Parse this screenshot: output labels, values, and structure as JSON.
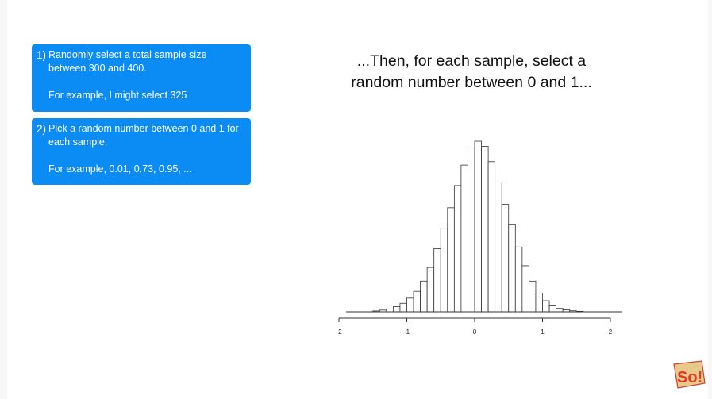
{
  "step1": {
    "number": "1)",
    "text": "Randomly select a total sample size between 300 and 400.",
    "example": "For example, I might select 325"
  },
  "step2": {
    "number": "2)",
    "text": "Pick a random number between 0 and 1 for each sample.",
    "example": "For example, 0.01, 0.73, 0.95, ..."
  },
  "headline": {
    "line1": "...Then, for each sample, select a",
    "line2": "random number between 0 and 1..."
  },
  "logo_text": "So!",
  "colors": {
    "accent": "#0a8cf4",
    "bar_fill": "#ffffff",
    "bar_stroke": "#333333"
  },
  "chart_data": {
    "type": "bar",
    "description_kind": "histogram",
    "bin_width": 0.1,
    "xlim": [
      -2,
      2
    ],
    "ylim": [
      0,
      1
    ],
    "x_ticks": [
      -2,
      -1,
      0,
      1,
      2
    ],
    "x_tick_labels": [
      "-2",
      "-1",
      "0",
      "1",
      "2"
    ],
    "bin_starts": [
      -1.5,
      -1.4,
      -1.3,
      -1.2,
      -1.1,
      -1.0,
      -0.9,
      -0.8,
      -0.7,
      -0.6,
      -0.5,
      -0.4,
      -0.3,
      -0.2,
      -0.1,
      0.0,
      0.1,
      0.2,
      0.3,
      0.4,
      0.5,
      0.6,
      0.7,
      0.8,
      0.9,
      1.0,
      1.1,
      1.2,
      1.3,
      1.4,
      1.5
    ],
    "values": [
      0.005,
      0.01,
      0.017,
      0.03,
      0.05,
      0.08,
      0.12,
      0.18,
      0.26,
      0.37,
      0.49,
      0.61,
      0.74,
      0.86,
      0.96,
      1.0,
      0.97,
      0.88,
      0.76,
      0.63,
      0.51,
      0.38,
      0.27,
      0.18,
      0.11,
      0.065,
      0.035,
      0.02,
      0.012,
      0.006,
      0.003
    ],
    "title": "",
    "xlabel": "",
    "ylabel": "",
    "grid": false
  }
}
